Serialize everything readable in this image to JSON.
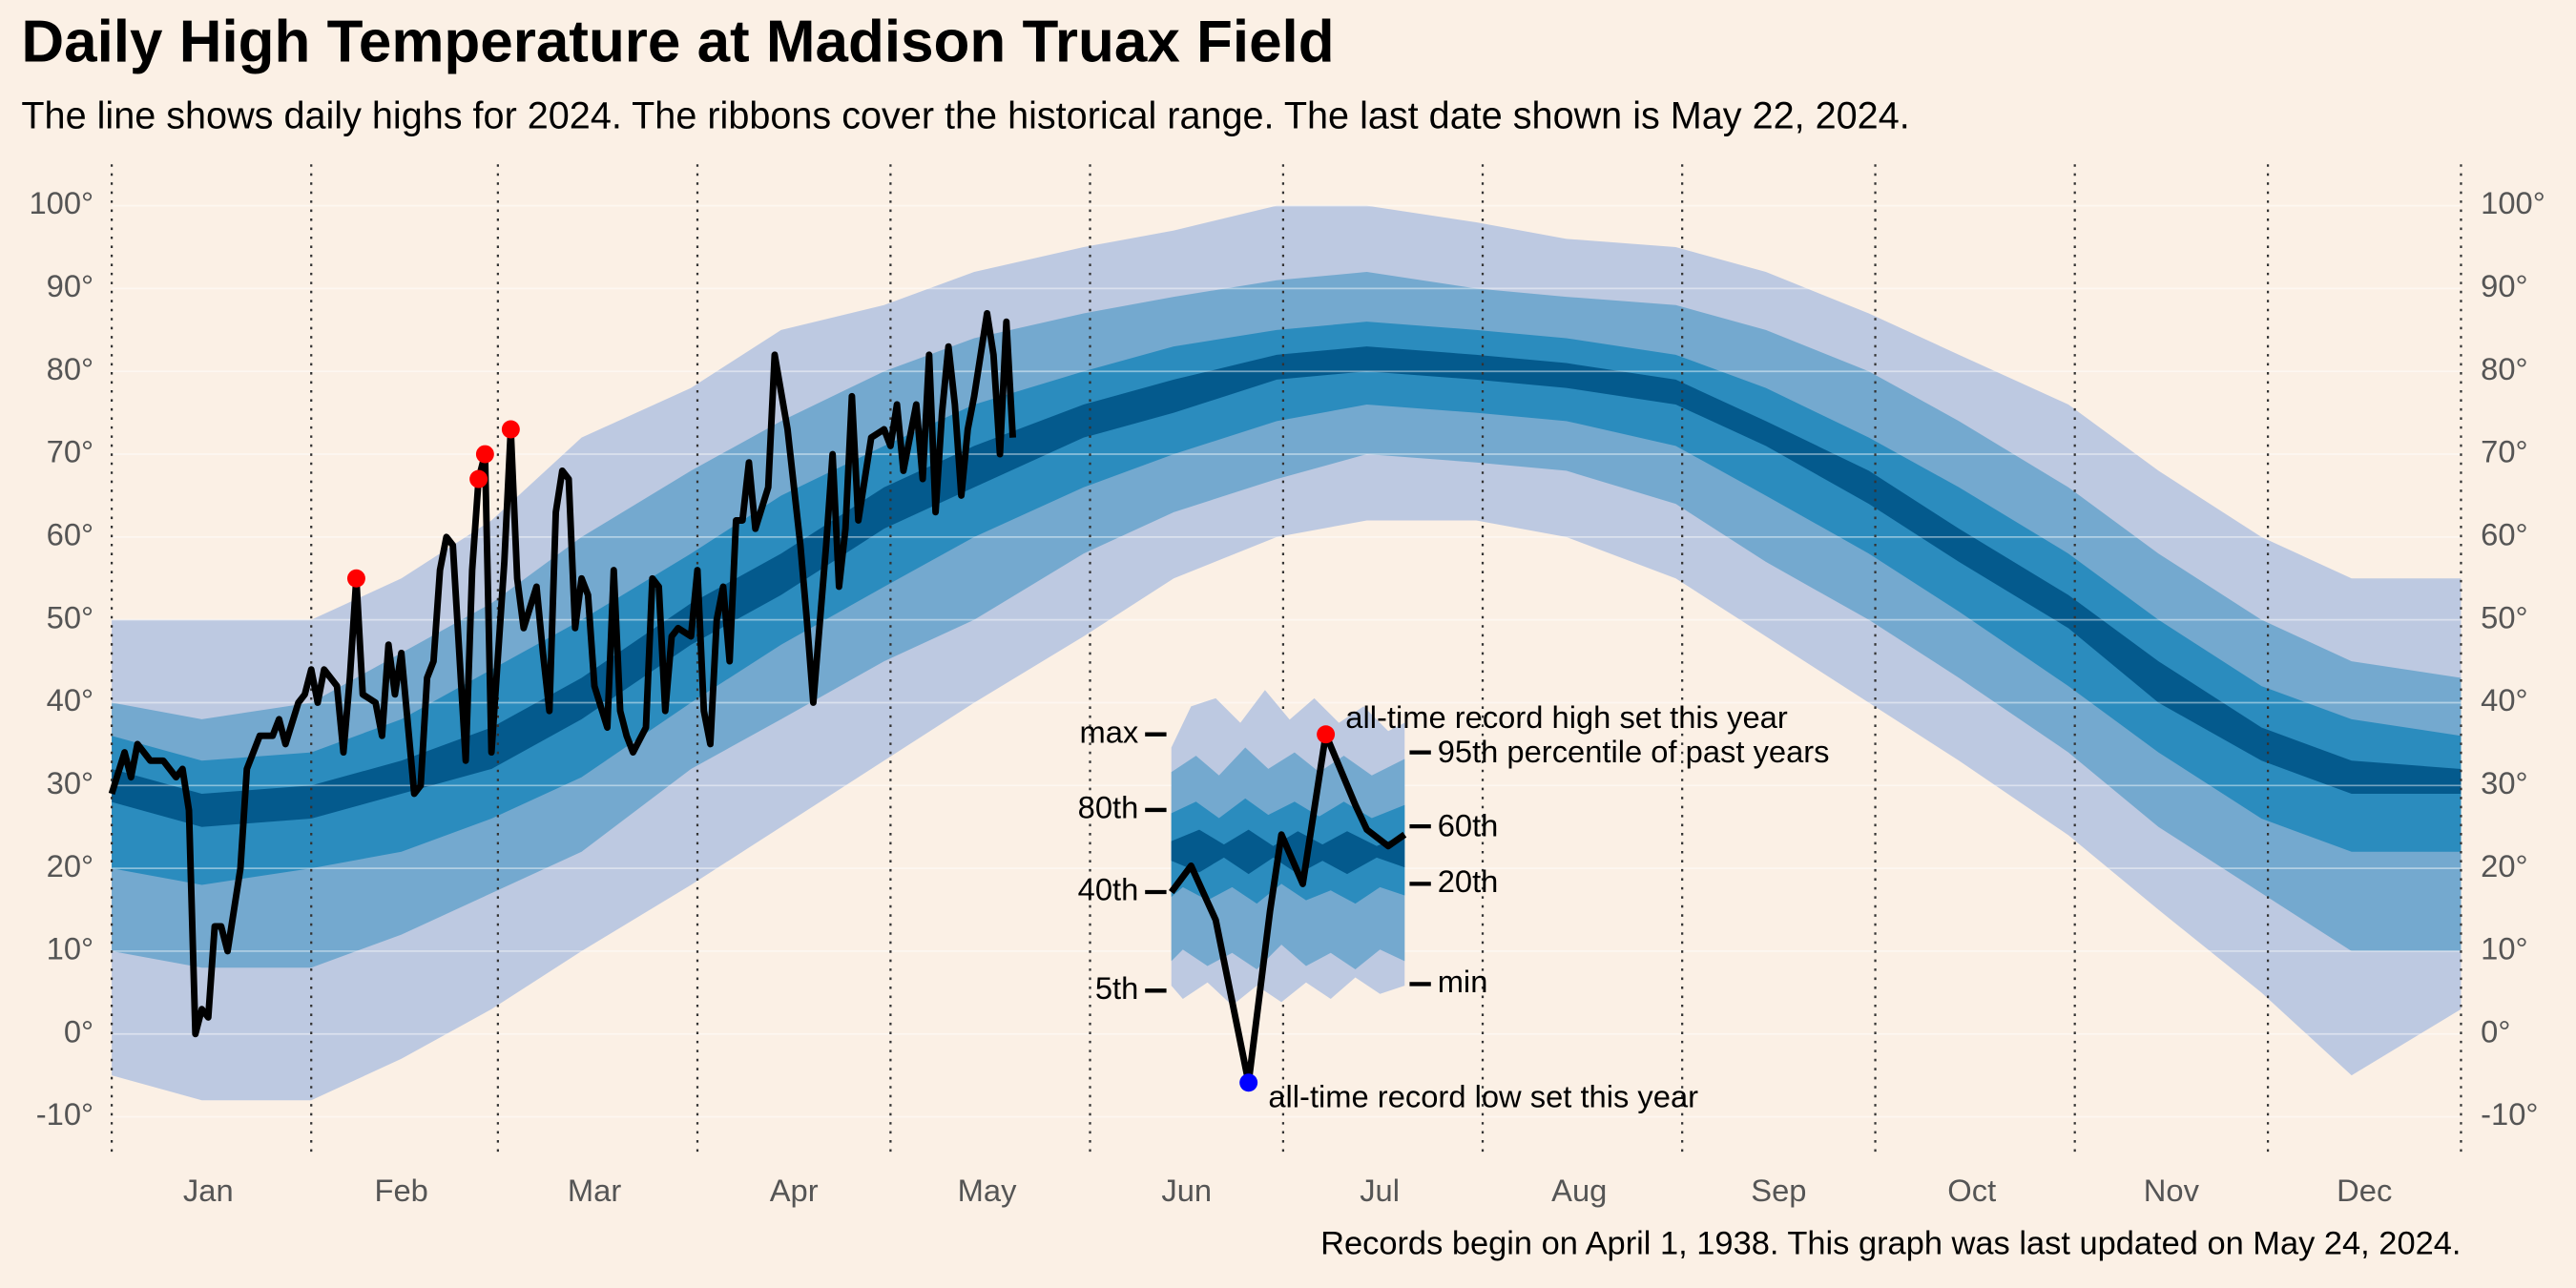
{
  "chart_data": {
    "type": "ribbon",
    "title": "Daily High Temperature at Madison Truax Field",
    "subtitle": "The line shows daily highs for 2024. The ribbons cover the historical range. The last date shown is May 22, 2024.",
    "note": "Records begin on April 1, 1938. This graph was last updated on May 24, 2024.",
    "xlim": [
      1,
      366
    ],
    "ylim": [
      -15,
      105
    ],
    "month_starts": [
      1,
      32,
      61,
      92,
      122,
      153,
      183,
      214,
      245,
      275,
      306,
      336,
      366
    ],
    "xticks": [
      {
        "value": 16,
        "label": "Jan"
      },
      {
        "value": 46,
        "label": "Feb"
      },
      {
        "value": 76,
        "label": "Mar"
      },
      {
        "value": 107,
        "label": "Apr"
      },
      {
        "value": 137,
        "label": "May"
      },
      {
        "value": 168,
        "label": "Jun"
      },
      {
        "value": 198,
        "label": "Jul"
      },
      {
        "value": 229,
        "label": "Aug"
      },
      {
        "value": 260,
        "label": "Sep"
      },
      {
        "value": 290,
        "label": "Oct"
      },
      {
        "value": 321,
        "label": "Nov"
      },
      {
        "value": 351,
        "label": "Dec"
      }
    ],
    "yticks": [
      {
        "value": -10,
        "label": "-10°"
      },
      {
        "value": 0,
        "label": "0°"
      },
      {
        "value": 10,
        "label": "10°"
      },
      {
        "value": 20,
        "label": "20°"
      },
      {
        "value": 30,
        "label": "30°"
      },
      {
        "value": 40,
        "label": "40°"
      },
      {
        "value": 50,
        "label": "50°"
      },
      {
        "value": 60,
        "label": "60°"
      },
      {
        "value": 70,
        "label": "70°"
      },
      {
        "value": 80,
        "label": "80°"
      },
      {
        "value": 90,
        "label": "90°"
      },
      {
        "value": 100,
        "label": "100°"
      }
    ],
    "grid": true,
    "band_colors": [
      "#bdc9e1",
      "#74a9cf",
      "#2b8cbe",
      "#045a8d"
    ],
    "percentiles": {
      "x": [
        1,
        15,
        32,
        46,
        60,
        74,
        91,
        105,
        121,
        135,
        152,
        166,
        182,
        196,
        213,
        227,
        244,
        258,
        274,
        288,
        305,
        319,
        335,
        349,
        366
      ],
      "series": [
        {
          "name": "min",
          "values": [
            -5,
            -8,
            -8,
            -3,
            3,
            10,
            18,
            25,
            33,
            40,
            48,
            55,
            60,
            62,
            62,
            60,
            55,
            48,
            40,
            33,
            24,
            15,
            5,
            -5,
            3
          ]
        },
        {
          "name": "5th",
          "values": [
            10,
            8,
            8,
            12,
            17,
            22,
            32,
            38,
            45,
            50,
            58,
            63,
            67,
            70,
            69,
            68,
            64,
            57,
            50,
            43,
            34,
            25,
            17,
            10,
            10
          ]
        },
        {
          "name": "20th",
          "values": [
            20,
            18,
            20,
            22,
            26,
            31,
            40,
            47,
            54,
            60,
            66,
            70,
            74,
            76,
            75,
            74,
            71,
            65,
            58,
            51,
            42,
            34,
            26,
            22,
            22
          ]
        },
        {
          "name": "40th",
          "values": [
            28,
            25,
            26,
            29,
            32,
            38,
            47,
            53,
            61,
            66,
            72,
            75,
            79,
            80,
            79,
            78,
            76,
            71,
            64,
            57,
            49,
            40,
            33,
            29,
            29
          ]
        },
        {
          "name": "60th",
          "values": [
            32,
            29,
            30,
            33,
            37,
            43,
            52,
            58,
            66,
            71,
            76,
            79,
            82,
            83,
            82,
            81,
            79,
            74,
            68,
            61,
            53,
            45,
            37,
            33,
            32
          ]
        },
        {
          "name": "80th",
          "values": [
            36,
            33,
            34,
            38,
            44,
            50,
            58,
            65,
            71,
            76,
            80,
            83,
            85,
            86,
            85,
            84,
            82,
            78,
            72,
            66,
            58,
            50,
            42,
            38,
            36
          ]
        },
        {
          "name": "95th percentile of past years",
          "values": [
            40,
            38,
            40,
            46,
            52,
            60,
            68,
            74,
            80,
            84,
            87,
            89,
            91,
            92,
            90,
            89,
            88,
            85,
            80,
            74,
            66,
            58,
            50,
            45,
            43
          ]
        },
        {
          "name": "max",
          "values": [
            50,
            50,
            50,
            55,
            62,
            72,
            78,
            85,
            88,
            92,
            95,
            97,
            100,
            100,
            98,
            96,
            95,
            92,
            87,
            82,
            76,
            68,
            60,
            55,
            55
          ]
        }
      ]
    },
    "line": {
      "color": "#000000",
      "x": [
        1,
        3,
        4,
        5,
        7,
        9,
        11,
        12,
        13,
        14,
        15,
        16,
        17,
        18,
        19,
        21,
        22,
        24,
        26,
        27,
        28,
        30,
        31,
        32,
        33,
        34,
        36,
        37,
        38,
        39,
        40,
        42,
        43,
        44,
        45,
        46,
        48,
        49,
        50,
        51,
        52,
        53,
        54,
        56,
        57,
        58,
        59,
        60,
        62,
        63,
        64,
        65,
        67,
        68,
        69,
        70,
        71,
        72,
        73,
        74,
        75,
        76,
        78,
        79,
        80,
        81,
        82,
        84,
        85,
        86,
        87,
        88,
        89,
        91,
        92,
        93,
        94,
        95,
        96,
        97,
        98,
        99,
        100,
        101,
        103,
        104,
        106,
        108,
        109,
        110,
        112,
        113,
        114,
        115,
        116,
        117,
        119,
        121,
        122,
        123,
        124,
        125,
        126,
        127,
        128,
        129,
        130,
        131,
        132,
        133,
        134,
        135,
        137,
        138,
        139,
        140,
        141
      ],
      "values": [
        29,
        34,
        31,
        35,
        33,
        33,
        31,
        32,
        27,
        0,
        3,
        2,
        13,
        13,
        10,
        20,
        32,
        36,
        36,
        38,
        35,
        40,
        41,
        44,
        40,
        44,
        42,
        34,
        43,
        55,
        41,
        40,
        36,
        47,
        41,
        46,
        29,
        30,
        43,
        45,
        56,
        60,
        59,
        33,
        56,
        67,
        70,
        34,
        57,
        73,
        55,
        49,
        54,
        46,
        39,
        63,
        68,
        67,
        49,
        55,
        53,
        42,
        37,
        56,
        39,
        36,
        34,
        37,
        55,
        54,
        39,
        48,
        49,
        48,
        56,
        39,
        35,
        50,
        54,
        45,
        62,
        62,
        69,
        61,
        66,
        82,
        73,
        59,
        50,
        40,
        59,
        70,
        54,
        61,
        77,
        62,
        72,
        73,
        71,
        76,
        68,
        72,
        76,
        67,
        82,
        63,
        75,
        83,
        76,
        65,
        73,
        77,
        87,
        82,
        70,
        86,
        72
      ]
    },
    "records": {
      "color": "#ff0000",
      "x": [
        39,
        58,
        59,
        63
      ],
      "values": [
        55,
        67,
        70,
        73
      ]
    },
    "record_high_label": "all-time record high set this year",
    "record_low_label": "all-time record low set this year",
    "record_low_color": "#0000ff"
  }
}
